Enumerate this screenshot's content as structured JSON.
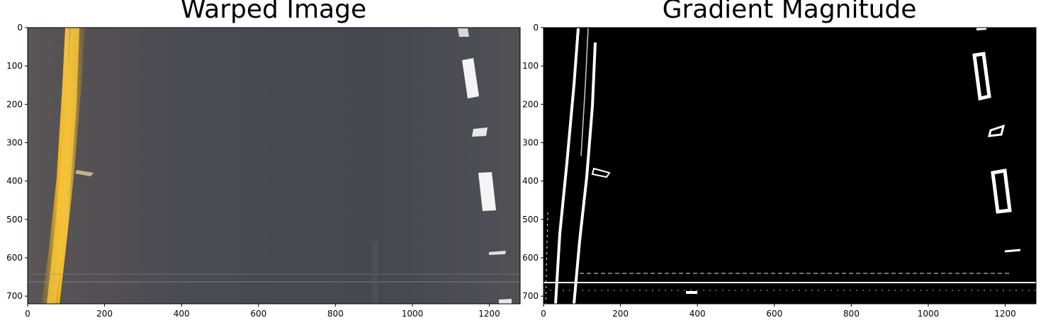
{
  "panels": [
    {
      "title": "Warped Image",
      "kind": "photo",
      "x_ticks": [
        "0",
        "200",
        "400",
        "600",
        "800",
        "1000",
        "1200"
      ],
      "y_ticks": [
        "0",
        "100",
        "200",
        "300",
        "400",
        "500",
        "600",
        "700"
      ],
      "x_range": [
        0,
        1280
      ],
      "y_range": [
        0,
        720
      ],
      "colors": {
        "road": "#4a4a52",
        "lane_yellow": "#e8b020",
        "lane_white": "#f4f4f4"
      }
    },
    {
      "title": "Gradient Magnitude",
      "kind": "binary",
      "x_ticks": [
        "0",
        "200",
        "400",
        "600",
        "800",
        "1000",
        "1200"
      ],
      "y_ticks": [
        "0",
        "100",
        "200",
        "300",
        "400",
        "500",
        "600",
        "700"
      ],
      "x_range": [
        0,
        1280
      ],
      "y_range": [
        0,
        720
      ],
      "colors": {
        "background": "#000000",
        "foreground": "#ffffff"
      }
    }
  ]
}
